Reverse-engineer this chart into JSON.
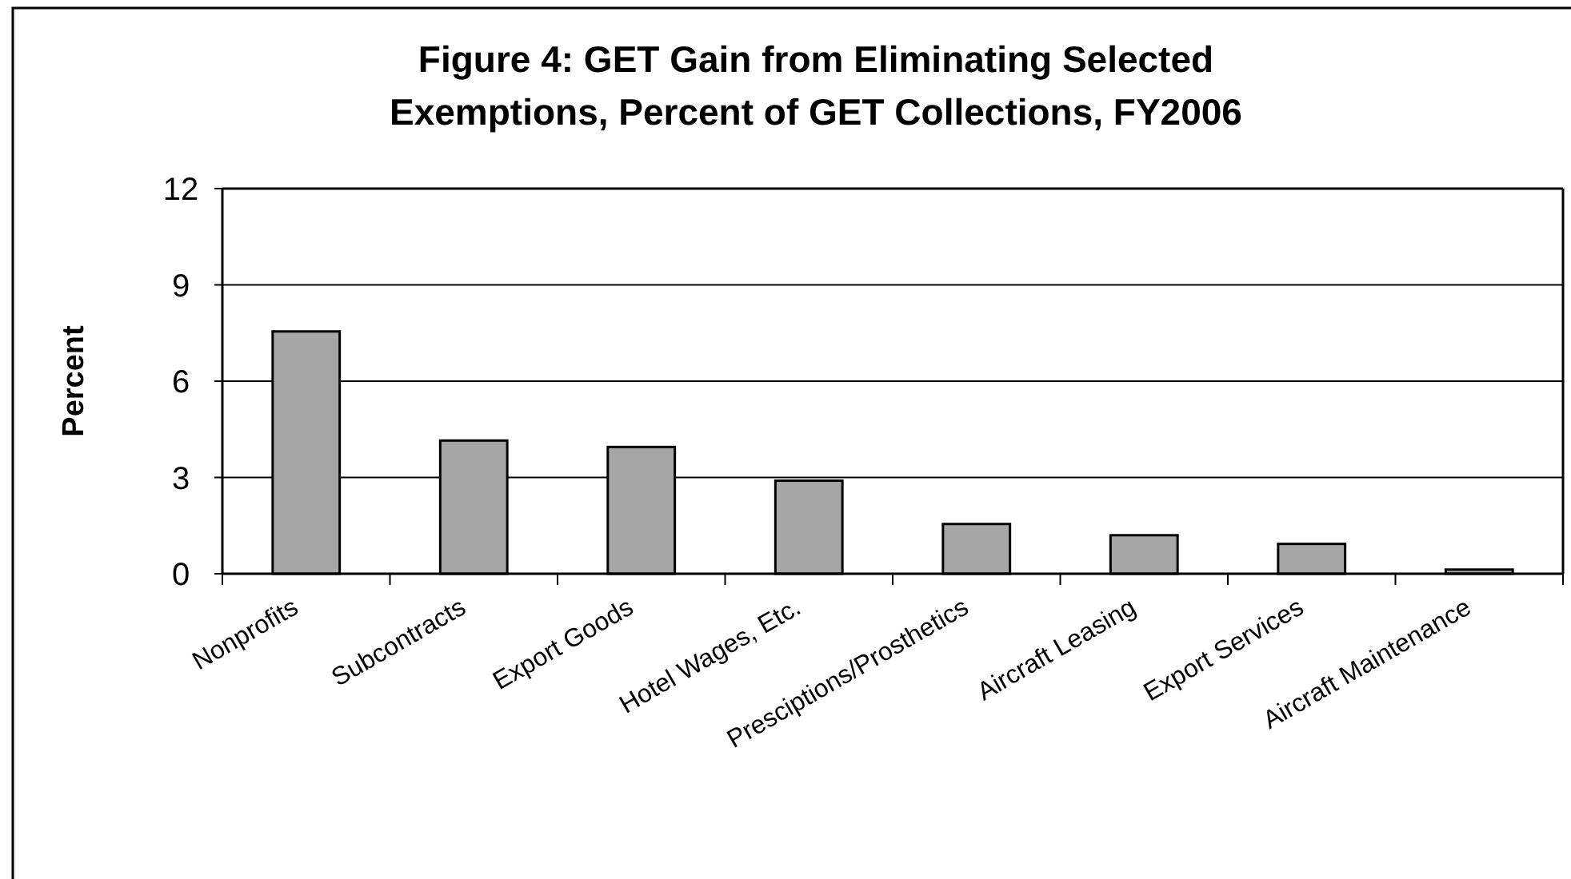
{
  "chart_data": {
    "type": "bar",
    "title": "Figure 4: GET Gain from Eliminating Selected Exemptions, Percent of GET Collections, FY2006",
    "ylabel": "Percent",
    "categories": [
      "Nonprofits",
      "Subcontracts",
      "Export Goods",
      "Hotel Wages, Etc.",
      "Presciptions/Prosthetics",
      "Aircraft Leasing",
      "Export Services",
      "Aircraft Maintenance"
    ],
    "values": [
      7.55,
      4.15,
      3.95,
      2.9,
      1.55,
      1.2,
      0.93,
      0.13
    ],
    "color": "#a6a6a6",
    "ylim": [
      0,
      12
    ],
    "yticks": [
      0,
      3,
      6,
      9,
      12
    ],
    "grid": "y"
  }
}
